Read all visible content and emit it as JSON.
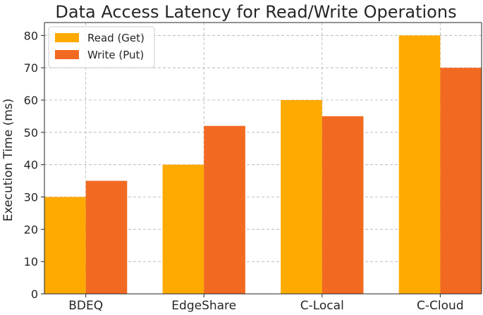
{
  "chart_data": {
    "type": "bar",
    "title": "Data Access Latency for Read/Write Operations",
    "xlabel": "",
    "ylabel": "Execution Time (ms)",
    "categories": [
      "BDEQ",
      "EdgeShare",
      "C-Local",
      "C-Cloud"
    ],
    "series": [
      {
        "name": "Read (Get)",
        "color": "#FFAA00",
        "values": [
          30,
          40,
          60,
          80
        ]
      },
      {
        "name": "Write (Put)",
        "color": "#F26A21",
        "values": [
          35,
          52,
          55,
          70
        ]
      }
    ],
    "ylim": [
      0,
      84
    ],
    "yticks": [
      0,
      10,
      20,
      30,
      40,
      50,
      60,
      70,
      80
    ],
    "grid": true,
    "legend": "top-left"
  }
}
